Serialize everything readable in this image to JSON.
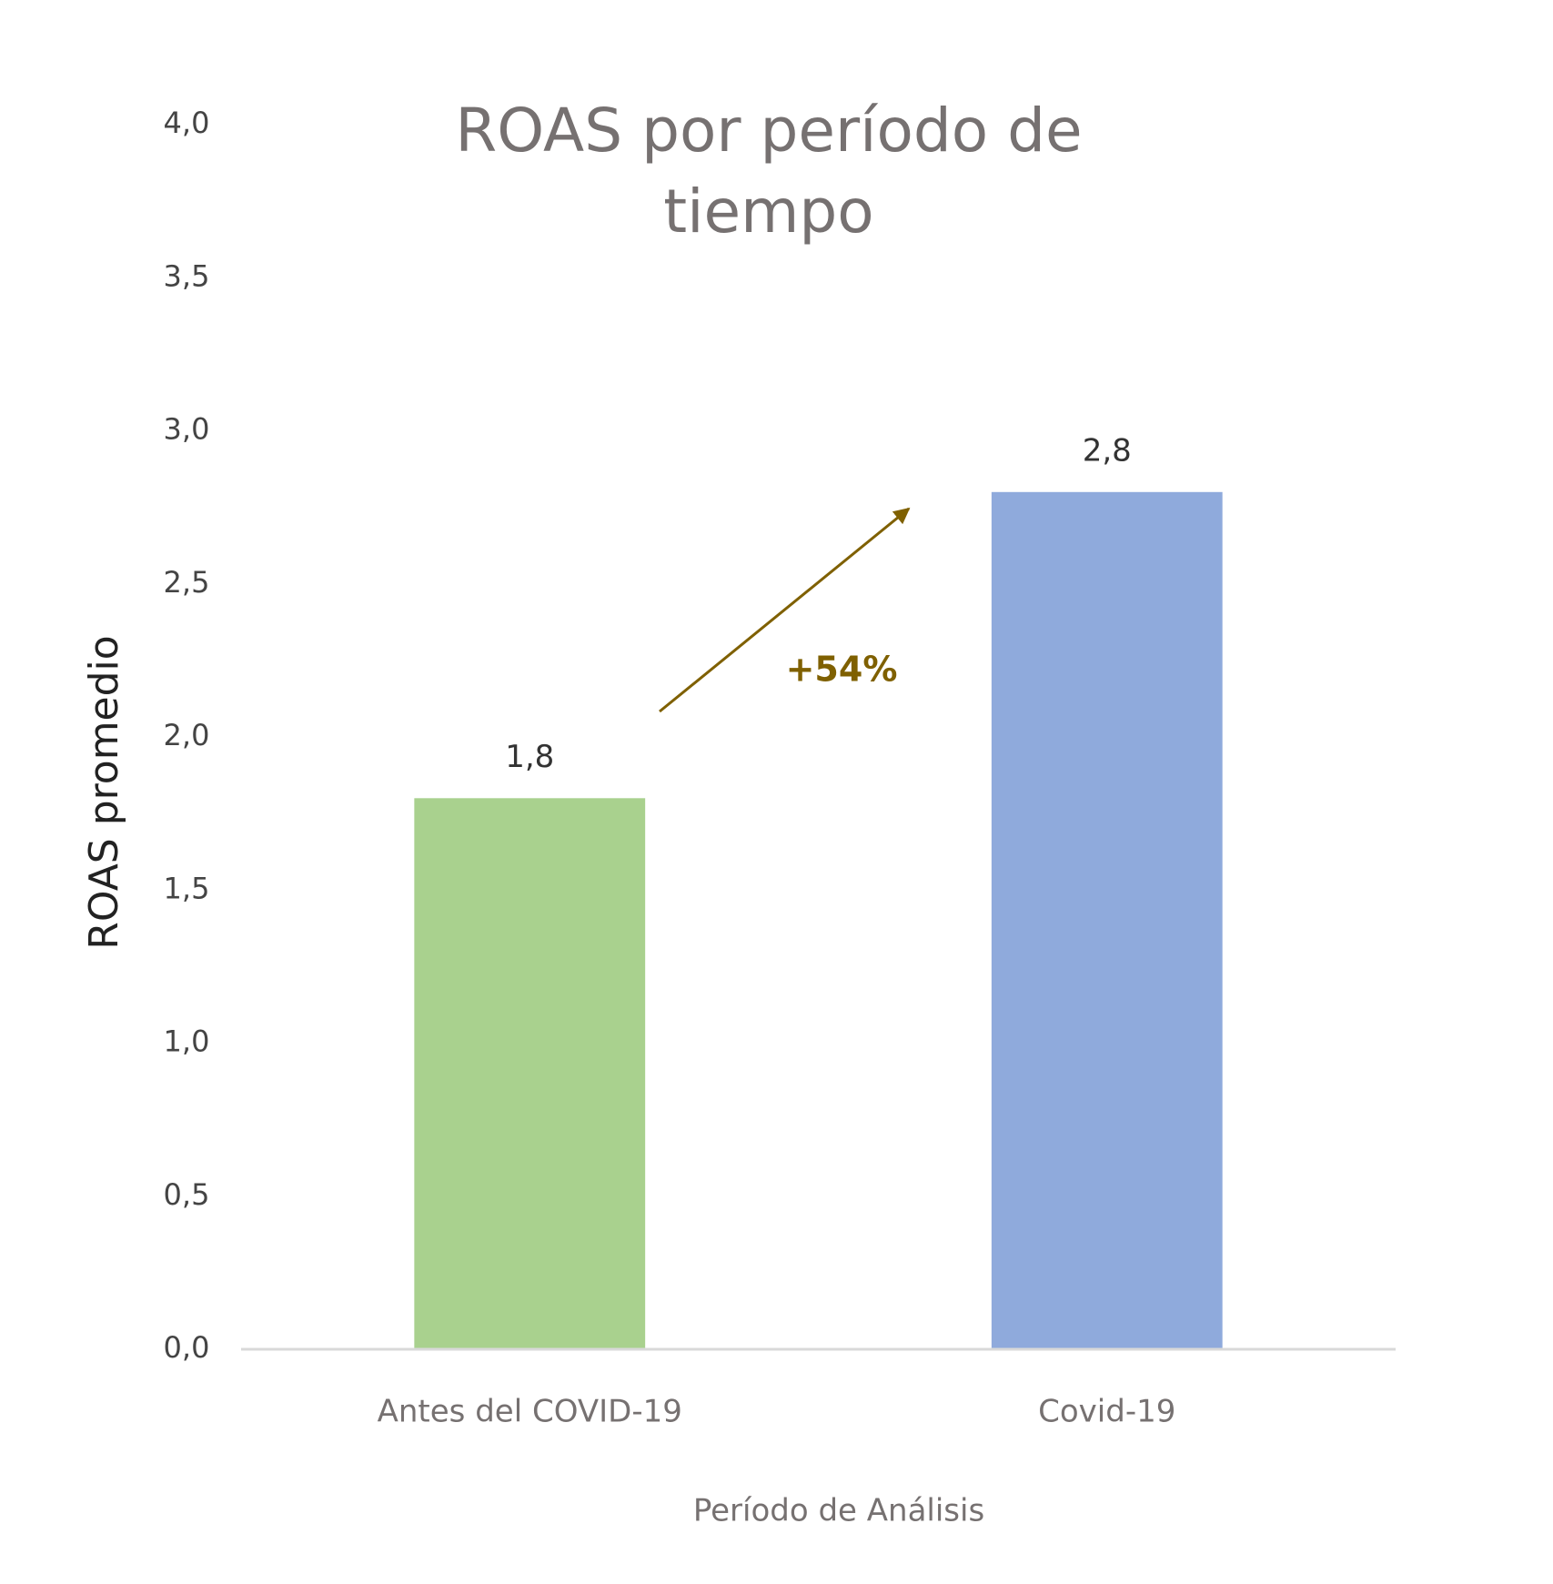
{
  "chart_data": {
    "type": "bar",
    "title": "ROAS por período de tiempo",
    "y_axis_label": "ROAS promedio",
    "x_axis_label": "Período de Análisis",
    "categories": [
      "Antes del COVID-19",
      "Covid-19"
    ],
    "values": [
      1.8,
      2.8
    ],
    "value_labels": [
      "1,8",
      "2,8"
    ],
    "colors": [
      "#a9d18e",
      "#8faadc"
    ],
    "ylim": [
      0,
      4
    ],
    "yticks": [
      {
        "value": 0,
        "label": "0,0"
      },
      {
        "value": 0.5,
        "label": "0,5"
      },
      {
        "value": 1,
        "label": "1,0"
      },
      {
        "value": 1.5,
        "label": "1,5"
      },
      {
        "value": 2,
        "label": "2,0"
      },
      {
        "value": 2.5,
        "label": "2,5"
      },
      {
        "value": 3,
        "label": "3,0"
      },
      {
        "value": 3.5,
        "label": "3,5"
      },
      {
        "value": 4,
        "label": "4,0"
      }
    ],
    "grid": false,
    "annotation": "+54%"
  }
}
